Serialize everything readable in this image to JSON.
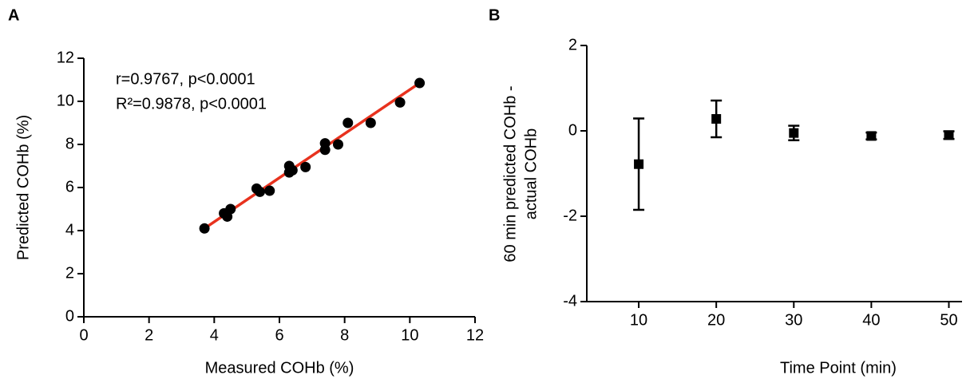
{
  "chart_data": [
    {
      "type": "scatter",
      "label": "A",
      "xlabel": "Measured COHb (%)",
      "ylabel": [
        "Predicted COHb (%)"
      ],
      "annotations": [
        "r=0.9767, p<0.0001",
        "R²=0.9878, p<0.0001"
      ],
      "x": [
        3.7,
        4.3,
        4.4,
        4.5,
        5.3,
        5.4,
        5.7,
        6.3,
        6.3,
        6.4,
        6.8,
        7.4,
        7.4,
        7.8,
        8.1,
        8.8,
        9.7,
        10.3
      ],
      "values": [
        4.1,
        4.8,
        4.65,
        5.0,
        5.95,
        5.8,
        5.85,
        7.0,
        6.7,
        6.8,
        6.95,
        8.05,
        7.75,
        8.0,
        9.0,
        9.0,
        9.95,
        10.85
      ],
      "color": "#000000",
      "fit": {
        "x": [
          3.7,
          10.3
        ],
        "y": [
          4.1,
          10.85
        ],
        "color": "#e8321e"
      },
      "xlim": [
        0,
        12
      ],
      "ylim": [
        0,
        12
      ],
      "xticks": [
        0,
        2,
        4,
        6,
        8,
        10,
        12
      ],
      "yticks": [
        0,
        2,
        4,
        6,
        8,
        10,
        12
      ]
    },
    {
      "type": "errorbar",
      "label": "B",
      "xlabel": "Time Point (min)",
      "ylabel": [
        "60 min predicted COHb -",
        "actual COHb"
      ],
      "x": [
        10,
        20,
        30,
        40,
        50
      ],
      "values": [
        -0.78,
        0.28,
        -0.05,
        -0.12,
        -0.1
      ],
      "errors": [
        1.07,
        0.43,
        0.17,
        0.08,
        0.09
      ],
      "color": "#000000",
      "xlim": [
        3.3,
        51.7
      ],
      "ylim": [
        -4,
        2
      ],
      "xticks": [
        10,
        20,
        30,
        40,
        50
      ],
      "yticks": [
        -4,
        -2,
        0,
        2
      ]
    }
  ]
}
